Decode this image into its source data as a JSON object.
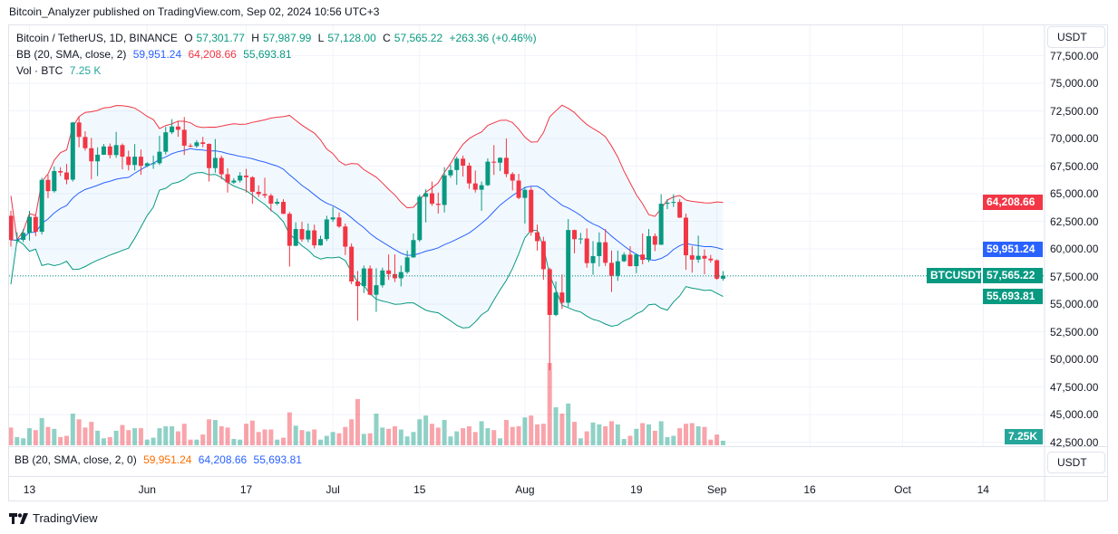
{
  "published": "Bitcoin_Analyzer published on TradingView.com, Sep 02, 2024 10:56 UTC+3",
  "legend": {
    "symbol": "Bitcoin / TetherUS, 1D, BINANCE",
    "o_label": "O",
    "o": "57,301.77",
    "h_label": "H",
    "h": "57,987.99",
    "l_label": "L",
    "l": "57,128.00",
    "c_label": "C",
    "c": "57,565.22",
    "change": "+263.36 (+0.46%)",
    "bb_name": "BB (20, SMA, close, 2)",
    "bb_basis": "59,951.24",
    "bb_upper": "64,208.66",
    "bb_lower": "55,693.81",
    "vol_name": "Vol · BTC",
    "vol": "7.25 K"
  },
  "lower_pane": {
    "label": "BB (20, SMA, close, 2, 0)",
    "basis": "59,951.24",
    "upper": "64,208.66",
    "lower": "55,693.81",
    "currency": "USDT"
  },
  "currency": "USDT",
  "price_labels": {
    "upper": "64,208.66",
    "basis": "59,951.24",
    "close": "57,565.22",
    "symbol_tag": "BTCUSDT",
    "lower": "55,693.81",
    "volume": "7.25K"
  },
  "footer": {
    "brand": "TradingView"
  },
  "colors": {
    "up": "#089981",
    "down": "#f23645",
    "basis": "#2962ff",
    "upper": "#f23645",
    "lower": "#089981",
    "band_fill": "#2196f3"
  },
  "chart_data": {
    "type": "candlestick",
    "symbol": "BTCUSDT",
    "interval": "1D",
    "ylim": [
      42500,
      77500
    ],
    "grid": true,
    "price_ticks": [
      "77,500.00",
      "75,000.00",
      "72,500.00",
      "70,000.00",
      "67,500.00",
      "65,000.00",
      "62,500.00",
      "60,000.00",
      "57,500.00",
      "55,000.00",
      "52,500.00",
      "50,000.00",
      "47,500.00",
      "45,000.00",
      "42,500.00"
    ],
    "time_ticks": [
      {
        "label": "13",
        "date": "2024-05-13"
      },
      {
        "label": "Jun",
        "date": "2024-06-01"
      },
      {
        "label": "17",
        "date": "2024-06-17"
      },
      {
        "label": "Jul",
        "date": "2024-07-01"
      },
      {
        "label": "15",
        "date": "2024-07-15"
      },
      {
        "label": "Aug",
        "date": "2024-08-01"
      },
      {
        "label": "19",
        "date": "2024-08-19"
      },
      {
        "label": "Sep",
        "date": "2024-09-01"
      },
      {
        "label": "16",
        "date": "2024-09-16"
      },
      {
        "label": "Oct",
        "date": "2024-10-01"
      },
      {
        "label": "14",
        "date": "2024-10-14"
      }
    ],
    "columns": [
      "date",
      "open",
      "high",
      "low",
      "close",
      "volume_k_btc"
    ],
    "candles": [
      [
        "2024-05-10",
        63000,
        63450,
        60200,
        60800,
        28
      ],
      [
        "2024-05-11",
        60800,
        61500,
        60500,
        60820,
        13
      ],
      [
        "2024-05-12",
        60820,
        61800,
        60620,
        61450,
        11
      ],
      [
        "2024-05-13",
        61450,
        63450,
        60750,
        62900,
        27
      ],
      [
        "2024-05-14",
        62900,
        63100,
        61150,
        61550,
        24
      ],
      [
        "2024-05-15",
        61550,
        66450,
        61300,
        66250,
        43
      ],
      [
        "2024-05-16",
        66250,
        66700,
        64600,
        65230,
        29
      ],
      [
        "2024-05-17",
        65230,
        67450,
        65100,
        67050,
        26
      ],
      [
        "2024-05-18",
        67050,
        67400,
        66600,
        66920,
        13
      ],
      [
        "2024-05-19",
        66920,
        67700,
        65850,
        66270,
        15
      ],
      [
        "2024-05-20",
        66270,
        71500,
        66100,
        71450,
        50
      ],
      [
        "2024-05-21",
        71450,
        71950,
        69200,
        70140,
        41
      ],
      [
        "2024-05-22",
        70140,
        70650,
        68900,
        69120,
        28
      ],
      [
        "2024-05-23",
        69120,
        70050,
        66300,
        67930,
        37
      ],
      [
        "2024-05-24",
        67930,
        69200,
        66600,
        68530,
        23
      ],
      [
        "2024-05-25",
        68530,
        69500,
        68500,
        69280,
        11
      ],
      [
        "2024-05-26",
        69280,
        69550,
        68200,
        68500,
        13
      ],
      [
        "2024-05-27",
        68500,
        70600,
        68250,
        69400,
        23
      ],
      [
        "2024-05-28",
        69400,
        69550,
        67200,
        68350,
        32
      ],
      [
        "2024-05-29",
        68350,
        68900,
        67100,
        67600,
        24
      ],
      [
        "2024-05-30",
        67600,
        69500,
        67100,
        68350,
        27
      ],
      [
        "2024-05-31",
        68350,
        69000,
        66700,
        67520,
        27
      ],
      [
        "2024-06-01",
        67520,
        67850,
        67400,
        67750,
        9
      ],
      [
        "2024-06-02",
        67750,
        68450,
        67250,
        67760,
        12
      ],
      [
        "2024-06-03",
        67760,
        70250,
        67600,
        68800,
        27
      ],
      [
        "2024-06-04",
        68800,
        71050,
        68550,
        70560,
        30
      ],
      [
        "2024-06-05",
        70560,
        71750,
        70400,
        71080,
        30
      ],
      [
        "2024-06-06",
        71080,
        71600,
        70150,
        70790,
        22
      ],
      [
        "2024-06-07",
        70790,
        71950,
        68500,
        69350,
        34
      ],
      [
        "2024-06-08",
        69350,
        69550,
        69200,
        69310,
        9
      ],
      [
        "2024-06-09",
        69310,
        69850,
        69150,
        69650,
        9
      ],
      [
        "2024-06-10",
        69650,
        70150,
        69200,
        69510,
        17
      ],
      [
        "2024-06-11",
        69510,
        69550,
        66100,
        67320,
        41
      ],
      [
        "2024-06-12",
        67320,
        69950,
        66900,
        68240,
        40
      ],
      [
        "2024-06-13",
        68240,
        68450,
        66300,
        66760,
        30
      ],
      [
        "2024-06-14",
        66760,
        67300,
        65100,
        66010,
        28
      ],
      [
        "2024-06-15",
        66010,
        66400,
        65900,
        66190,
        10
      ],
      [
        "2024-06-16",
        66190,
        66950,
        66000,
        66640,
        9
      ],
      [
        "2024-06-17",
        66640,
        67250,
        65100,
        66490,
        34
      ],
      [
        "2024-06-18",
        66490,
        66580,
        64100,
        65170,
        39
      ],
      [
        "2024-06-19",
        65170,
        65750,
        64700,
        64960,
        21
      ],
      [
        "2024-06-20",
        64960,
        66450,
        64600,
        64830,
        25
      ],
      [
        "2024-06-21",
        64830,
        65000,
        63400,
        64100,
        25
      ],
      [
        "2024-06-22",
        64100,
        64550,
        63950,
        64260,
        9
      ],
      [
        "2024-06-23",
        64260,
        64500,
        63150,
        63180,
        12
      ],
      [
        "2024-06-24",
        63180,
        63350,
        58400,
        60280,
        52
      ],
      [
        "2024-06-25",
        60280,
        62400,
        60250,
        61800,
        31
      ],
      [
        "2024-06-26",
        61800,
        62450,
        60650,
        60860,
        24
      ],
      [
        "2024-06-27",
        60860,
        62300,
        60600,
        61680,
        22
      ],
      [
        "2024-06-28",
        61680,
        62200,
        60050,
        60320,
        25
      ],
      [
        "2024-06-29",
        60320,
        61200,
        60300,
        60890,
        9
      ],
      [
        "2024-06-30",
        60890,
        63000,
        60700,
        62670,
        15
      ],
      [
        "2024-07-01",
        62670,
        63800,
        62450,
        62850,
        21
      ],
      [
        "2024-07-02",
        62850,
        63300,
        61900,
        62030,
        19
      ],
      [
        "2024-07-03",
        62030,
        62300,
        59450,
        60200,
        29
      ],
      [
        "2024-07-04",
        60200,
        60500,
        56800,
        57050,
        41
      ],
      [
        "2024-07-05",
        57050,
        58000,
        53500,
        56630,
        73
      ],
      [
        "2024-07-06",
        56630,
        58500,
        56000,
        58230,
        18
      ],
      [
        "2024-07-07",
        58230,
        58500,
        55800,
        55850,
        19
      ],
      [
        "2024-07-08",
        55850,
        58250,
        54300,
        56710,
        50
      ],
      [
        "2024-07-09",
        56710,
        58300,
        56500,
        58050,
        28
      ],
      [
        "2024-07-10",
        58050,
        59500,
        57200,
        57720,
        26
      ],
      [
        "2024-07-11",
        57720,
        59500,
        57000,
        57340,
        30
      ],
      [
        "2024-07-12",
        57340,
        58500,
        56600,
        57900,
        25
      ],
      [
        "2024-07-13",
        57900,
        59850,
        57750,
        59230,
        14
      ],
      [
        "2024-07-14",
        59230,
        61400,
        59200,
        60800,
        21
      ],
      [
        "2024-07-15",
        60800,
        64900,
        60650,
        64720,
        41
      ],
      [
        "2024-07-16",
        64720,
        65400,
        62400,
        65040,
        47
      ],
      [
        "2024-07-17",
        65040,
        66100,
        63900,
        64090,
        34
      ],
      [
        "2024-07-18",
        64090,
        65100,
        63200,
        63980,
        28
      ],
      [
        "2024-07-19",
        63980,
        67400,
        63300,
        66660,
        40
      ],
      [
        "2024-07-20",
        66660,
        67600,
        66450,
        67140,
        14
      ],
      [
        "2024-07-21",
        67140,
        68350,
        65800,
        68170,
        22
      ],
      [
        "2024-07-22",
        68170,
        68450,
        66550,
        67540,
        27
      ],
      [
        "2024-07-23",
        67540,
        67800,
        65450,
        65930,
        30
      ],
      [
        "2024-07-24",
        65930,
        67100,
        65100,
        65360,
        21
      ],
      [
        "2024-07-25",
        65360,
        66100,
        63450,
        65770,
        38
      ],
      [
        "2024-07-26",
        65770,
        68200,
        65700,
        67900,
        27
      ],
      [
        "2024-07-27",
        67900,
        69400,
        66700,
        67810,
        24
      ],
      [
        "2024-07-28",
        67810,
        68300,
        67050,
        68250,
        11
      ],
      [
        "2024-07-29",
        68250,
        70000,
        66500,
        66780,
        40
      ],
      [
        "2024-07-30",
        66780,
        66950,
        65300,
        66190,
        29
      ],
      [
        "2024-07-31",
        66190,
        66800,
        64500,
        64620,
        30
      ],
      [
        "2024-08-01",
        64620,
        65600,
        62300,
        65350,
        44
      ],
      [
        "2024-08-02",
        65350,
        65600,
        61200,
        61500,
        47
      ],
      [
        "2024-08-03",
        61500,
        62200,
        59850,
        60700,
        33
      ],
      [
        "2024-08-04",
        60700,
        61100,
        57200,
        58160,
        34
      ],
      [
        "2024-08-05",
        58160,
        58300,
        49000,
        54020,
        130
      ],
      [
        "2024-08-06",
        54020,
        57050,
        53900,
        56050,
        60
      ],
      [
        "2024-08-07",
        56050,
        57700,
        54550,
        55130,
        50
      ],
      [
        "2024-08-08",
        55130,
        62700,
        54750,
        61710,
        66
      ],
      [
        "2024-08-09",
        61710,
        61750,
        59600,
        60880,
        37
      ],
      [
        "2024-08-10",
        60880,
        61450,
        60450,
        60940,
        11
      ],
      [
        "2024-08-11",
        60940,
        61850,
        58300,
        58710,
        22
      ],
      [
        "2024-08-12",
        58710,
        60700,
        57650,
        59350,
        36
      ],
      [
        "2024-08-13",
        59350,
        61500,
        58400,
        60600,
        33
      ],
      [
        "2024-08-14",
        60600,
        61800,
        58450,
        58740,
        30
      ],
      [
        "2024-08-15",
        58740,
        59850,
        56100,
        57560,
        38
      ],
      [
        "2024-08-16",
        57560,
        59850,
        57100,
        58880,
        33
      ],
      [
        "2024-08-17",
        58880,
        59700,
        58800,
        59480,
        10
      ],
      [
        "2024-08-18",
        59480,
        60250,
        58400,
        58440,
        15
      ],
      [
        "2024-08-19",
        58440,
        59600,
        57800,
        59490,
        26
      ],
      [
        "2024-08-20",
        59490,
        61400,
        58600,
        59010,
        35
      ],
      [
        "2024-08-21",
        59010,
        61800,
        58800,
        61160,
        33
      ],
      [
        "2024-08-22",
        61160,
        61400,
        59800,
        60380,
        23
      ],
      [
        "2024-08-23",
        60380,
        64950,
        60350,
        64090,
        38
      ],
      [
        "2024-08-24",
        64090,
        64500,
        63600,
        64180,
        13
      ],
      [
        "2024-08-25",
        64180,
        64950,
        63800,
        64250,
        15
      ],
      [
        "2024-08-26",
        64250,
        64500,
        62800,
        62830,
        27
      ],
      [
        "2024-08-27",
        62830,
        63200,
        58100,
        59420,
        34
      ],
      [
        "2024-08-28",
        59420,
        60250,
        57850,
        59030,
        35
      ],
      [
        "2024-08-29",
        59030,
        61200,
        58750,
        59370,
        30
      ],
      [
        "2024-08-30",
        59370,
        59950,
        57700,
        59120,
        29
      ],
      [
        "2024-08-31",
        59120,
        59450,
        58750,
        58970,
        9
      ],
      [
        "2024-09-01",
        58970,
        59050,
        57200,
        57300,
        17
      ],
      [
        "2024-09-02",
        57301.77,
        57987.99,
        57128.0,
        57565.22,
        7.25
      ]
    ],
    "last_bb": {
      "basis": 59951.24,
      "upper": 64208.66,
      "lower": 55693.81
    }
  }
}
